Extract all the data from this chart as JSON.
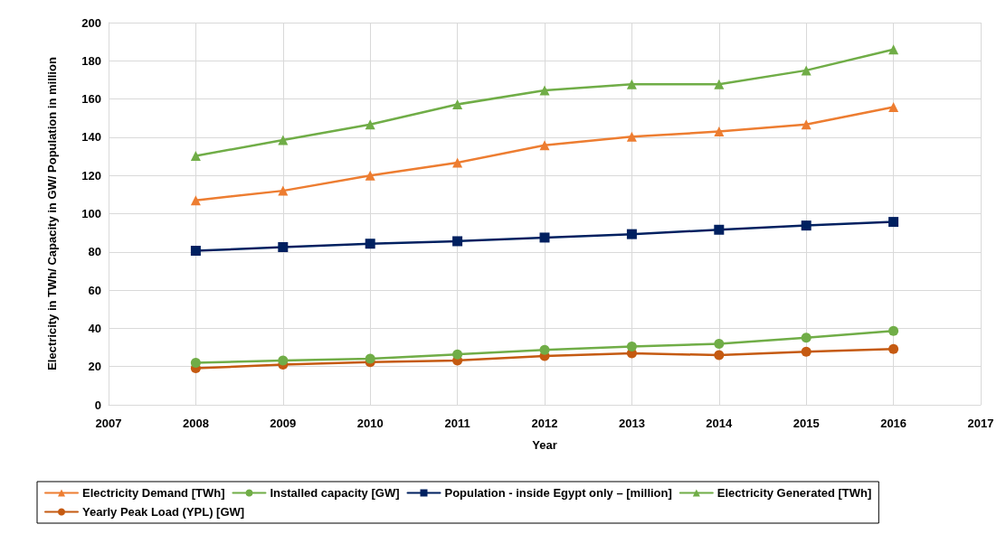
{
  "chart_data": {
    "type": "line",
    "xlabel": "Year",
    "ylabel": "Electricity in TWh/ Capacity in GW/ Population in million",
    "x": [
      2008,
      2009,
      2010,
      2011,
      2012,
      2013,
      2014,
      2015,
      2016
    ],
    "xlim": [
      2007,
      2017
    ],
    "xticks": [
      2007,
      2008,
      2009,
      2010,
      2011,
      2012,
      2013,
      2014,
      2015,
      2016,
      2017
    ],
    "ylim": [
      0,
      200
    ],
    "yticks": [
      0,
      20,
      40,
      60,
      80,
      100,
      120,
      140,
      160,
      180,
      200
    ],
    "grid": true,
    "legend": "bottom",
    "series": [
      {
        "name": "Electricity Demand [TWh]",
        "color": "#ed7d31",
        "marker": "triangle",
        "values": [
          107,
          112,
          120,
          126.7,
          135.8,
          140.3,
          143,
          146.7,
          155.8
        ]
      },
      {
        "name": "Installed capacity [GW]",
        "color": "#70ad47",
        "marker": "circle",
        "values": [
          22,
          23.2,
          24.1,
          26.4,
          28.7,
          30.5,
          31.9,
          35.1,
          38.7
        ]
      },
      {
        "name": "Population - inside Egypt only – [million]",
        "color": "#002060",
        "marker": "square",
        "values": [
          80.6,
          82.5,
          84.3,
          85.6,
          87.5,
          89.3,
          91.6,
          93.8,
          95.7
        ]
      },
      {
        "name": "Electricity Generated [TWh]",
        "color": "#70ad47",
        "marker": "triangle",
        "values": [
          130.3,
          138.5,
          146.7,
          157.2,
          164.5,
          167.7,
          167.7,
          175,
          185.9
        ]
      },
      {
        "name": "Yearly Peak Load (YPL) [GW]",
        "color": "#c55a11",
        "marker": "circle",
        "values": [
          19.1,
          21,
          22.3,
          23.2,
          25.5,
          26.9,
          26,
          27.8,
          29.2
        ]
      }
    ]
  }
}
